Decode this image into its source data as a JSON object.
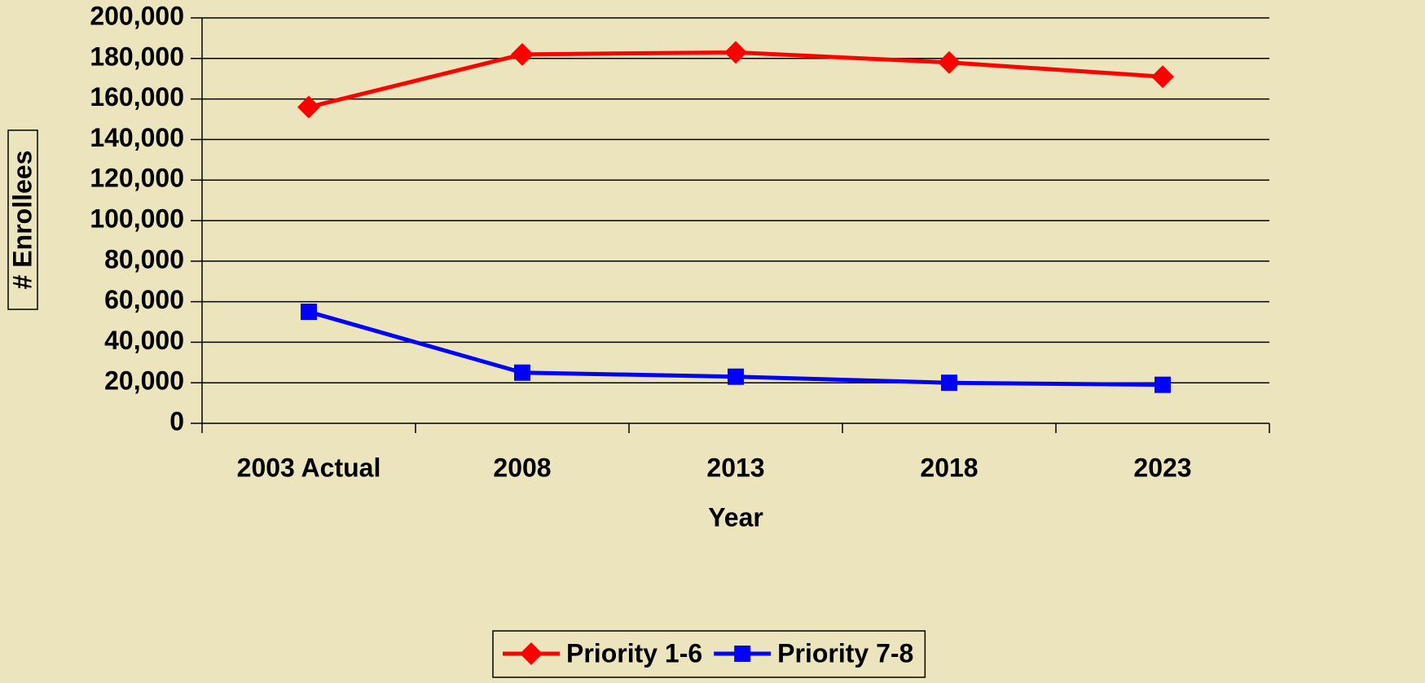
{
  "chart_data": {
    "type": "line",
    "x_label": "Year",
    "y_label": "# Enrollees",
    "categories": [
      "2003 Actual",
      "2008",
      "2013",
      "2018",
      "2023"
    ],
    "series": [
      {
        "name": "Priority 1-6",
        "color": "#ff0000",
        "marker": "diamond",
        "values": [
          156000,
          182000,
          183000,
          178000,
          171000
        ]
      },
      {
        "name": "Priority 7-8",
        "color": "#0000ff",
        "marker": "square",
        "values": [
          55000,
          25000,
          23000,
          20000,
          19000
        ]
      }
    ],
    "ylim": [
      0,
      200000
    ],
    "yticks": [
      0,
      {
        "value": 20000,
        "label": "20,000"
      },
      {
        "value": 40000,
        "label": "40,000"
      },
      {
        "value": 60000,
        "label": "60,000"
      },
      {
        "value": 80000,
        "label": "80,000"
      },
      {
        "value": 100000,
        "label": "100,000"
      },
      {
        "value": 120000,
        "label": "120,000"
      },
      {
        "value": 140000,
        "label": "140,000"
      },
      {
        "value": 160000,
        "label": "160,000"
      },
      {
        "value": 180000,
        "label": "180,000"
      },
      {
        "value": 200000,
        "label": "200,000"
      }
    ],
    "grid": true,
    "legend": "bottom"
  }
}
